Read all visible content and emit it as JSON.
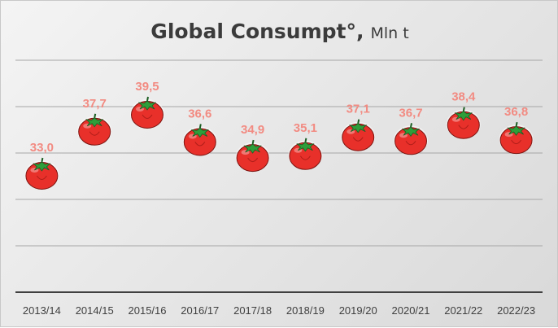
{
  "chart_data": {
    "type": "scatter",
    "title": "Global Consumpt°,",
    "title_unit": "Mln t",
    "categories": [
      "2013/14",
      "2014/15",
      "2015/16",
      "2016/17",
      "2017/18",
      "2018/19",
      "2019/20",
      "2020/21",
      "2021/22",
      "2022/23"
    ],
    "values": [
      33.0,
      37.7,
      39.5,
      36.6,
      34.9,
      35.1,
      37.1,
      36.7,
      38.4,
      36.8
    ],
    "value_labels": [
      "33,0",
      "37,7",
      "39,5",
      "36,6",
      "34,9",
      "35,1",
      "37,1",
      "36,7",
      "38,4",
      "36,8"
    ],
    "marker": "tomato",
    "grid": true,
    "legend": "none",
    "colors": {
      "data_label": "#f28b82",
      "tomato_body": "#e8302a",
      "tomato_stem": "#2e9e3a",
      "grid": "#a6a6a6",
      "axis": "#404040"
    }
  }
}
